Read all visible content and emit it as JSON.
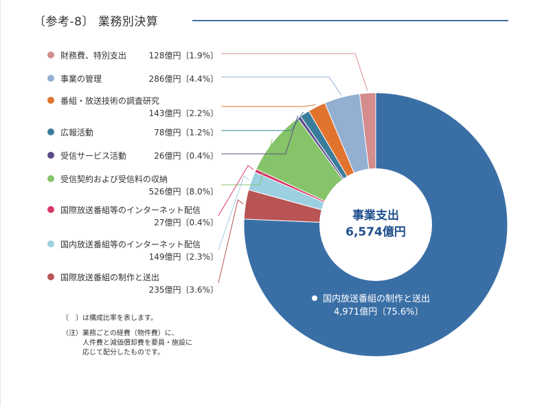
{
  "title": "〔参考-8〕 業務別決算",
  "center_label": {
    "line1": "事業支出",
    "line2": "6,574億円"
  },
  "big_slice_label": {
    "line1": "国内放送番組の制作と送出",
    "line2": "4,971億円〔75.6%〕"
  },
  "notes": {
    "bracket_note": "〔　〕は構成比率を表します。",
    "footnote": "（注）業務ごとの経費（物件費）に、\n　　　人件費と減価償却費を要員・施設に\n　　　応じて配分したものです。"
  },
  "legend": [
    {
      "name": "財務費、特別支出",
      "value": "128億円〔1.9%〕",
      "color": "#d48c8c"
    },
    {
      "name": "事業の管理",
      "value": "286億円〔4.4%〕",
      "color": "#93b0d2"
    },
    {
      "name": "番組・放送技術の調査研究",
      "value": "143億円〔2.2%〕",
      "color": "#e0732e"
    },
    {
      "name": "広報活動",
      "value": "78億円〔1.2%〕",
      "color": "#3a7d9a"
    },
    {
      "name": "受信サービス活動",
      "value": "26億円〔0.4%〕",
      "color": "#5e4b8b"
    },
    {
      "name": "受信契約および受信料の収納",
      "value": "526億円〔8.0%〕",
      "color": "#85c469"
    },
    {
      "name": "国際放送番組等のインターネット配信",
      "value": "27億円〔0.4%〕",
      "color": "#d83868"
    },
    {
      "name": "国内放送番組等のインターネット配信",
      "value": "149億円〔2.3%〕",
      "color": "#9ccfe0"
    },
    {
      "name": "国際放送番組の制作と送出",
      "value": "235億円〔3.6%〕",
      "color": "#b85454"
    }
  ],
  "chart_data": {
    "type": "pie",
    "title": "〔参考-8〕 業務別決算",
    "total": 6574,
    "unit": "億円",
    "categories": [
      "国内放送番組の制作と送出",
      "国際放送番組の制作と送出",
      "国内放送番組等のインターネット配信",
      "国際放送番組等のインターネット配信",
      "受信契約および受信料の収納",
      "受信サービス活動",
      "広報活動",
      "番組・放送技術の調査研究",
      "事業の管理",
      "財務費、特別支出"
    ],
    "values": [
      4971,
      235,
      149,
      27,
      526,
      26,
      78,
      143,
      286,
      128
    ],
    "percents": [
      75.6,
      3.6,
      2.3,
      0.4,
      8.0,
      0.4,
      1.2,
      2.2,
      4.4,
      1.9
    ],
    "colors": [
      "#3a6fa6",
      "#b85454",
      "#9ccfe0",
      "#d83868",
      "#85c469",
      "#5e4b8b",
      "#3a7d9a",
      "#e0732e",
      "#93b0d2",
      "#d48c8c"
    ]
  }
}
